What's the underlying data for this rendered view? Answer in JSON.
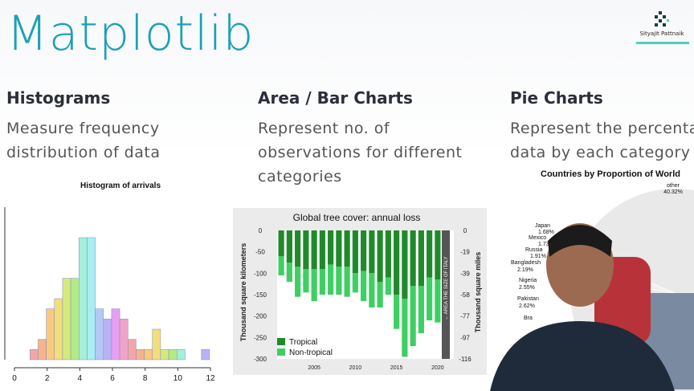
{
  "slide": {
    "title": "Matplotlib",
    "presenter_logo_text": "Sityajit Pattnaik",
    "columns": [
      {
        "heading": "Histograms",
        "desc_lines": [
          "Measure frequency",
          "distribution of data"
        ]
      },
      {
        "heading": "Area / Bar Charts",
        "desc_lines": [
          "Represent no. of",
          "observations for different",
          "categories"
        ]
      },
      {
        "heading": "Pie Charts",
        "desc_lines": [
          "Represent the percenta",
          "data by each category"
        ]
      }
    ]
  },
  "chart_data": [
    {
      "type": "bar",
      "title": "Histogram of arrivals",
      "x": [
        1,
        1.5,
        2,
        2.5,
        3,
        3.5,
        4,
        4.5,
        5,
        5.5,
        6,
        6.5,
        7,
        7.5,
        8,
        8.5,
        9,
        9.5,
        10,
        10.5,
        11,
        11.5
      ],
      "values": [
        1,
        2,
        5,
        6,
        8,
        8,
        12,
        12,
        5,
        4,
        5,
        4,
        2,
        1,
        1,
        3,
        1,
        1,
        1,
        0,
        0,
        1
      ],
      "colors": [
        "#f3a6a6",
        "#f6b48c",
        "#f8c97f",
        "#f2de7a",
        "#d6ea7b",
        "#b3ec86",
        "#a4f0d8",
        "#a8eef2",
        "#b5c8f5",
        "#b9b2f5",
        "#e6a0ef",
        "#f0a3c9",
        "#f3a6a6",
        "#f6b48c",
        "#f8c97f",
        "#f2de7a",
        "#d6ea7b",
        "#b3ec86",
        "#a4f0d8",
        "#a8eef2",
        "#b5c8f5",
        "#b9b2f5"
      ],
      "xticks": [
        "0",
        "2",
        "4",
        "6",
        "8",
        "10",
        "12"
      ],
      "xlim": [
        0,
        12
      ]
    },
    {
      "type": "bar",
      "title": "Global tree cover: annual loss",
      "ylabel": "Thousand square kilometers",
      "y2label": "Thousand square miles",
      "categories": [
        "2001",
        "2002",
        "2003",
        "2004",
        "2005",
        "2006",
        "2007",
        "2008",
        "2009",
        "2010",
        "2011",
        "2012",
        "2013",
        "2014",
        "2015",
        "2016",
        "2017",
        "2018",
        "2019",
        "2020"
      ],
      "series": [
        {
          "name": "Tropical",
          "color": "#1f8a2a",
          "values": [
            -60,
            -75,
            -85,
            -90,
            -90,
            -90,
            -80,
            -85,
            -85,
            -100,
            -95,
            -100,
            -120,
            -110,
            -150,
            -160,
            -130,
            -130,
            -110,
            -115
          ]
        },
        {
          "name": "Non-tropical",
          "color": "#3ecf62",
          "values": [
            -45,
            -45,
            -70,
            -55,
            -75,
            -60,
            -70,
            -65,
            -70,
            -45,
            -70,
            -80,
            -60,
            -40,
            -80,
            -135,
            -140,
            -110,
            -100,
            -100
          ]
        }
      ],
      "yticks": [
        "0",
        "-50",
        "-100",
        "-150",
        "-200",
        "-250",
        "-300"
      ],
      "y2ticks": [
        "0",
        "-19",
        "-39",
        "-58",
        "-77",
        "-97",
        "-116"
      ],
      "xticks": [
        "2005",
        "2010",
        "2015",
        "2020"
      ],
      "ylim": [
        -300,
        0
      ],
      "annotation": "← AREA THE SIZE OF ITALY",
      "legend": [
        "Tropical",
        "Non-tropical"
      ]
    },
    {
      "type": "pie",
      "title": "Countries by Proportion of World",
      "labels": [
        "other",
        "Japan",
        "Mexico",
        "Russia",
        "Bangladesh",
        "Nigeria",
        "Pakistan",
        "Bra"
      ],
      "percent_labels": [
        "40.32%",
        "1.68%",
        "1.73%",
        "1.91%",
        "2.19%",
        "2.55%",
        "2.62%",
        ""
      ]
    }
  ]
}
